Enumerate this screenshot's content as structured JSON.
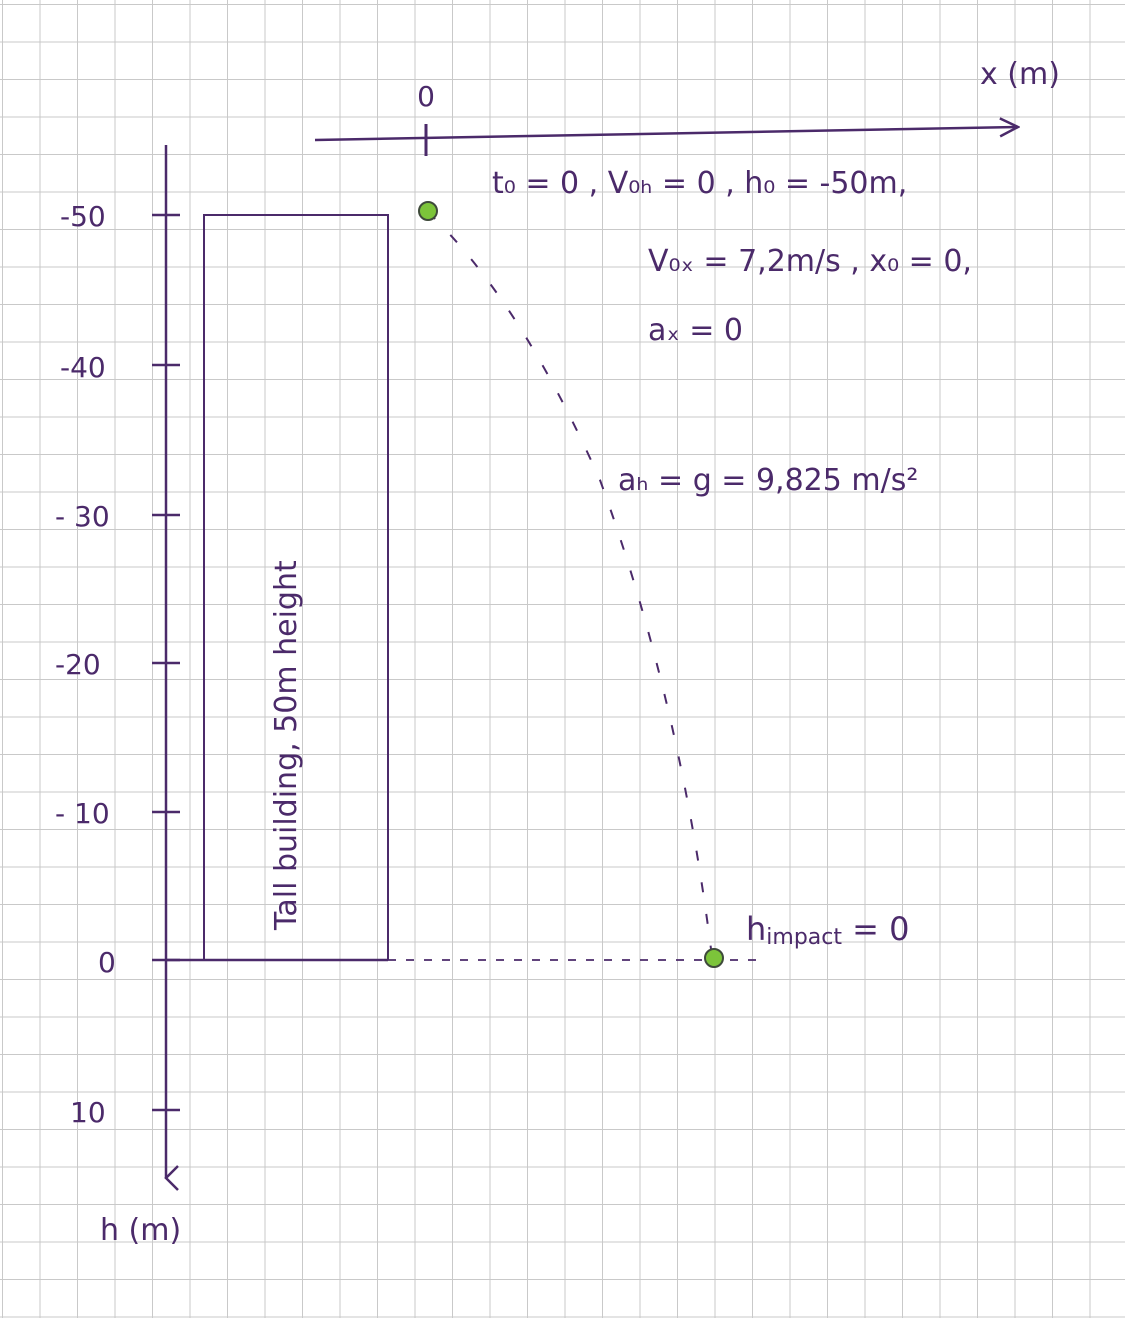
{
  "x_axis": {
    "label": "x (m)",
    "origin_label": "0"
  },
  "h_axis": {
    "label": "h (m)",
    "ticks": [
      "-50",
      "-40",
      "- 30",
      "-20",
      "- 10",
      "0",
      "10"
    ]
  },
  "building": {
    "label": "Tall building, 50m height"
  },
  "conditions": {
    "line1": "t₀ = 0 ,  V₀ₕ = 0 ,  h₀ = -50m,",
    "line2": "V₀ₓ = 7,2m/s ,  x₀ = 0,",
    "line3": "aₓ = 0",
    "accel": "aₕ = g = 9,825 m/s²"
  },
  "impact": {
    "label": "h",
    "subscript": "impact",
    "value": " = 0"
  },
  "colors": {
    "ink": "#4b2a6a",
    "ball": "#7cc43a",
    "grid": "#c9c9c9"
  }
}
